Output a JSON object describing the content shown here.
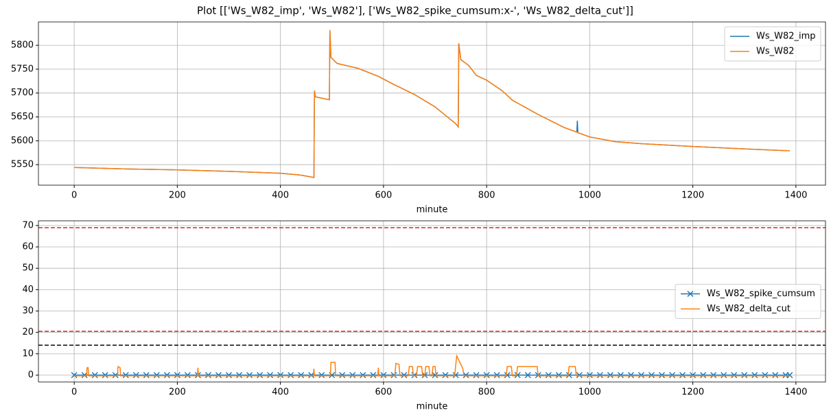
{
  "title": "Plot [['Ws_W82_imp', 'Ws_W82'], ['Ws_W82_spike_cumsum:x-', 'Ws_W82_delta_cut']]",
  "chart_data": [
    {
      "type": "line",
      "xlabel": "minute",
      "grid": true,
      "legend": "upper right",
      "xlim": [
        -69.4,
        1457.4
      ],
      "xticks": [
        0,
        200,
        400,
        600,
        800,
        1000,
        1200,
        1400
      ],
      "ylim": [
        5507,
        5849
      ],
      "yticks": [
        5550,
        5600,
        5650,
        5700,
        5750,
        5800
      ],
      "series": [
        {
          "name": "Ws_W82_imp",
          "color": "#1f77b4",
          "x": [
            0,
            100,
            200,
            300,
            400,
            440,
            465,
            466,
            468,
            495,
            496,
            498,
            510,
            550,
            590,
            620,
            660,
            700,
            740,
            745,
            746,
            750,
            765,
            780,
            800,
            830,
            850,
            900,
            950,
            975,
            976,
            977,
            1000,
            1050,
            1100,
            1200,
            1300,
            1388
          ],
          "values": [
            5544,
            5541,
            5539,
            5536,
            5532,
            5528,
            5523,
            5705,
            5692,
            5686,
            5832,
            5775,
            5762,
            5752,
            5735,
            5718,
            5697,
            5671,
            5636,
            5629,
            5804,
            5770,
            5758,
            5737,
            5727,
            5705,
            5685,
            5655,
            5628,
            5618,
            5642,
            5617,
            5608,
            5598,
            5594,
            5588,
            5583,
            5579
          ]
        },
        {
          "name": "Ws_W82",
          "color": "#ff7f0e",
          "x": [
            0,
            100,
            200,
            300,
            400,
            440,
            465,
            466,
            468,
            495,
            496,
            498,
            510,
            550,
            590,
            620,
            660,
            700,
            740,
            745,
            746,
            750,
            765,
            780,
            800,
            830,
            850,
            900,
            950,
            975,
            976,
            977,
            1000,
            1050,
            1100,
            1200,
            1300,
            1388
          ],
          "values": [
            5544,
            5541,
            5539,
            5536,
            5532,
            5528,
            5523,
            5705,
            5692,
            5686,
            5832,
            5775,
            5762,
            5752,
            5735,
            5718,
            5697,
            5671,
            5636,
            5629,
            5804,
            5770,
            5758,
            5737,
            5727,
            5705,
            5685,
            5655,
            5628,
            5618,
            5618,
            5617,
            5608,
            5598,
            5594,
            5588,
            5583,
            5579
          ]
        }
      ]
    },
    {
      "type": "line",
      "xlabel": "minute",
      "grid": true,
      "legend": "center right",
      "xlim": [
        -69.4,
        1457.4
      ],
      "xticks": [
        0,
        200,
        400,
        600,
        800,
        1000,
        1200,
        1400
      ],
      "ylim": [
        -3.2,
        72.2
      ],
      "yticks": [
        0,
        10,
        20,
        30,
        40,
        50,
        60,
        70
      ],
      "hlines": [
        {
          "value": 69,
          "color": "#d62728"
        },
        {
          "value": 20.5,
          "color": "#d62728"
        },
        {
          "value": 14,
          "color": "#000000"
        }
      ],
      "series": [
        {
          "name": "Ws_W82_spike_cumsum",
          "color": "#1f77b4",
          "marker": "x",
          "x": [
            0,
            20,
            40,
            60,
            80,
            100,
            120,
            140,
            160,
            180,
            200,
            220,
            240,
            260,
            280,
            300,
            320,
            340,
            360,
            380,
            400,
            420,
            440,
            460,
            480,
            500,
            520,
            540,
            560,
            580,
            600,
            620,
            640,
            660,
            680,
            700,
            720,
            740,
            760,
            780,
            800,
            820,
            840,
            860,
            880,
            900,
            920,
            940,
            960,
            980,
            1000,
            1020,
            1040,
            1060,
            1080,
            1100,
            1120,
            1140,
            1160,
            1180,
            1200,
            1220,
            1240,
            1260,
            1280,
            1300,
            1320,
            1340,
            1360,
            1380,
            1388
          ],
          "values": [
            0,
            0,
            0,
            0,
            0,
            0,
            0,
            0,
            0,
            0,
            0,
            0,
            0,
            0,
            0,
            0,
            0,
            0,
            0,
            0,
            0,
            0,
            0,
            0,
            0,
            0,
            0,
            0,
            0,
            0,
            0,
            0,
            0,
            0,
            0,
            0,
            0,
            0,
            0,
            0,
            0,
            0,
            0,
            0,
            0,
            0,
            0,
            0,
            0,
            0,
            0,
            0,
            0,
            0,
            0,
            0,
            0,
            0,
            0,
            0,
            0,
            0,
            0,
            0,
            0,
            0,
            0,
            0,
            0,
            0,
            0
          ]
        },
        {
          "name": "Ws_W82_delta_cut",
          "color": "#ff7f0e",
          "x": [
            0,
            24,
            25,
            27,
            28,
            84,
            85,
            89,
            90,
            239,
            240,
            241,
            464,
            465,
            466,
            497,
            498,
            506,
            507,
            589,
            590,
            591,
            622,
            624,
            630,
            632,
            648,
            650,
            656,
            658,
            664,
            666,
            674,
            676,
            680,
            682,
            688,
            690,
            694,
            696,
            700,
            702,
            738,
            742,
            748,
            754,
            756,
            838,
            840,
            848,
            850,
            858,
            860,
            898,
            900,
            958,
            960,
            972,
            974,
            1388
          ],
          "values": [
            -0.3,
            -0.3,
            3.5,
            3.5,
            -0.3,
            -0.3,
            4,
            3.5,
            -0.3,
            -0.3,
            3.5,
            -0.3,
            -0.3,
            3,
            -0.3,
            -0.3,
            6,
            6,
            -0.3,
            -0.3,
            3.5,
            -0.3,
            -0.3,
            5.5,
            5,
            -0.3,
            -0.3,
            4,
            4,
            -0.3,
            -0.3,
            4,
            4,
            -0.3,
            -0.3,
            4,
            4,
            -0.3,
            -0.3,
            4,
            4,
            -0.3,
            -0.3,
            9,
            6,
            3,
            -0.3,
            -0.3,
            4,
            4,
            -0.3,
            -0.3,
            4,
            4,
            -0.3,
            -0.3,
            4,
            4,
            -0.3,
            -0.3
          ]
        }
      ]
    }
  ]
}
